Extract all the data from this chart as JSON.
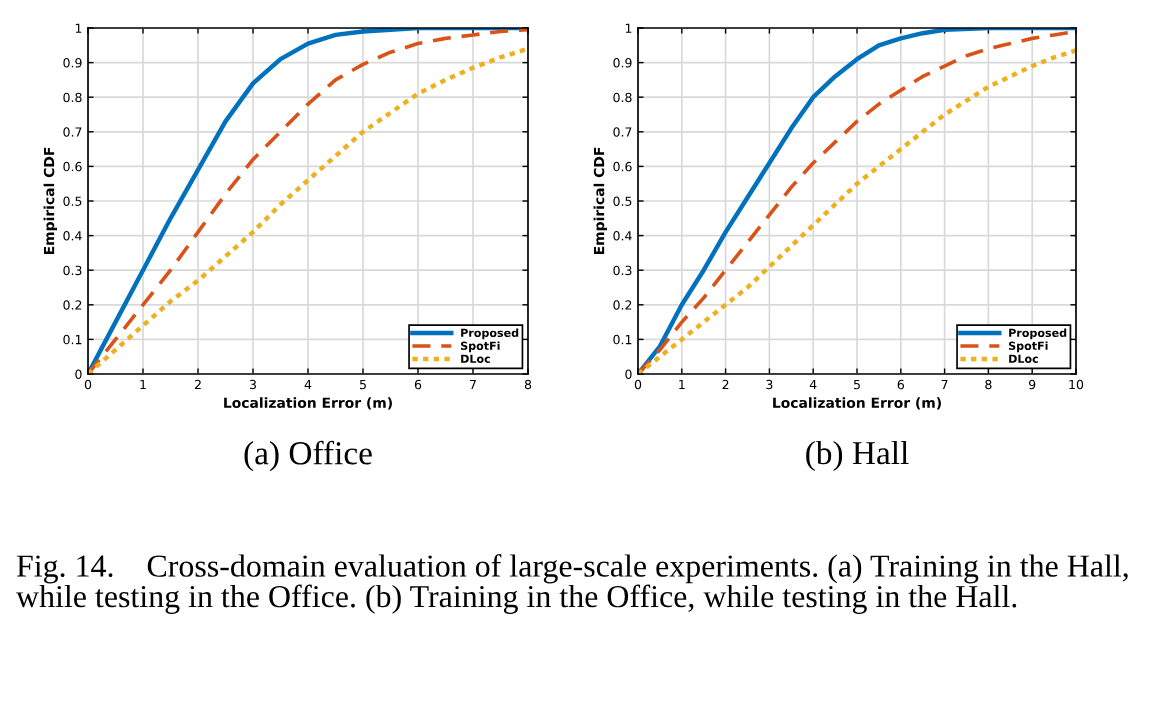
{
  "chart_data": [
    {
      "type": "line",
      "xlabel": "Localization Error (m)",
      "ylabel": "Empirical CDF",
      "xlim": [
        0,
        8
      ],
      "xticks": [
        0,
        1,
        2,
        3,
        4,
        5,
        6,
        7,
        8
      ],
      "ylim": [
        0,
        1
      ],
      "yticks": [
        0,
        0.1,
        0.2,
        0.3,
        0.4,
        0.5,
        0.6,
        0.7,
        0.8,
        0.9,
        1
      ],
      "grid": true,
      "legend": "bottom right",
      "series": [
        {
          "name": "Proposed",
          "color": "#0072bd",
          "line_style": "solid",
          "x": [
            0,
            0.5,
            1,
            1.5,
            2,
            2.5,
            3,
            3.5,
            4,
            4.5,
            5,
            5.5,
            6,
            8
          ],
          "values": [
            0,
            0.15,
            0.3,
            0.45,
            0.59,
            0.73,
            0.84,
            0.91,
            0.955,
            0.98,
            0.99,
            0.995,
            1,
            1
          ]
        },
        {
          "name": "SpotFi",
          "color": "#d95319",
          "line_style": "dashed",
          "x": [
            0,
            0.5,
            1,
            1.5,
            2,
            2.5,
            3,
            3.5,
            4,
            4.5,
            5,
            5.5,
            6,
            6.5,
            7,
            7.5,
            8
          ],
          "values": [
            0,
            0.1,
            0.2,
            0.3,
            0.41,
            0.52,
            0.62,
            0.7,
            0.78,
            0.85,
            0.895,
            0.93,
            0.955,
            0.97,
            0.98,
            0.99,
            0.995
          ]
        },
        {
          "name": "DLoc",
          "color": "#edb120",
          "line_style": "dotted",
          "x": [
            0,
            0.5,
            1,
            1.5,
            2,
            2.5,
            3,
            3.5,
            4,
            4.5,
            5,
            5.5,
            6,
            6.5,
            7,
            7.5,
            8
          ],
          "values": [
            0,
            0.07,
            0.14,
            0.21,
            0.27,
            0.34,
            0.41,
            0.49,
            0.56,
            0.63,
            0.7,
            0.755,
            0.81,
            0.85,
            0.885,
            0.915,
            0.94
          ]
        }
      ],
      "annotations": [
        "(a) Office",
        "Fig. 14.    Cross-domain evaluation of large-scale experiments. (a) Training in the Hall, while testing in the Office. (b) Training in the Office, while testing in the Hall."
      ]
    },
    {
      "type": "line",
      "xlabel": "Localization Error (m)",
      "ylabel": "Empirical CDF",
      "xlim": [
        0,
        10
      ],
      "xticks": [
        0,
        1,
        2,
        3,
        4,
        5,
        6,
        7,
        8,
        9,
        10
      ],
      "ylim": [
        0,
        1
      ],
      "yticks": [
        0,
        0.1,
        0.2,
        0.3,
        0.4,
        0.5,
        0.6,
        0.7,
        0.8,
        0.9,
        1
      ],
      "grid": true,
      "legend": "bottom right",
      "series": [
        {
          "name": "Proposed",
          "color": "#0072bd",
          "line_style": "solid",
          "x": [
            0,
            0.5,
            1,
            1.5,
            2,
            2.5,
            3,
            3.5,
            4,
            4.5,
            5,
            5.5,
            6,
            6.5,
            7,
            8,
            10
          ],
          "values": [
            0,
            0.08,
            0.2,
            0.3,
            0.41,
            0.51,
            0.61,
            0.71,
            0.8,
            0.86,
            0.91,
            0.95,
            0.97,
            0.985,
            0.995,
            1,
            1
          ]
        },
        {
          "name": "SpotFi",
          "color": "#d95319",
          "line_style": "dashed",
          "x": [
            0,
            0.5,
            1,
            1.5,
            2,
            2.5,
            3,
            3.5,
            4,
            4.5,
            5,
            5.5,
            6,
            6.5,
            7,
            7.5,
            8,
            8.5,
            9,
            9.5,
            10
          ],
          "values": [
            0,
            0.07,
            0.15,
            0.22,
            0.3,
            0.38,
            0.46,
            0.54,
            0.61,
            0.67,
            0.73,
            0.78,
            0.82,
            0.86,
            0.89,
            0.92,
            0.94,
            0.955,
            0.97,
            0.98,
            0.99
          ]
        },
        {
          "name": "DLoc",
          "color": "#edb120",
          "line_style": "dotted",
          "x": [
            0,
            0.5,
            1,
            1.5,
            2,
            2.5,
            3,
            3.5,
            4,
            4.5,
            5,
            5.5,
            6,
            6.5,
            7,
            7.5,
            8,
            8.5,
            9,
            9.5,
            10
          ],
          "values": [
            0,
            0.05,
            0.1,
            0.15,
            0.2,
            0.25,
            0.31,
            0.37,
            0.43,
            0.49,
            0.55,
            0.6,
            0.65,
            0.7,
            0.75,
            0.79,
            0.83,
            0.86,
            0.89,
            0.915,
            0.935
          ]
        }
      ],
      "annotations": [
        "(b) Hall"
      ]
    }
  ]
}
